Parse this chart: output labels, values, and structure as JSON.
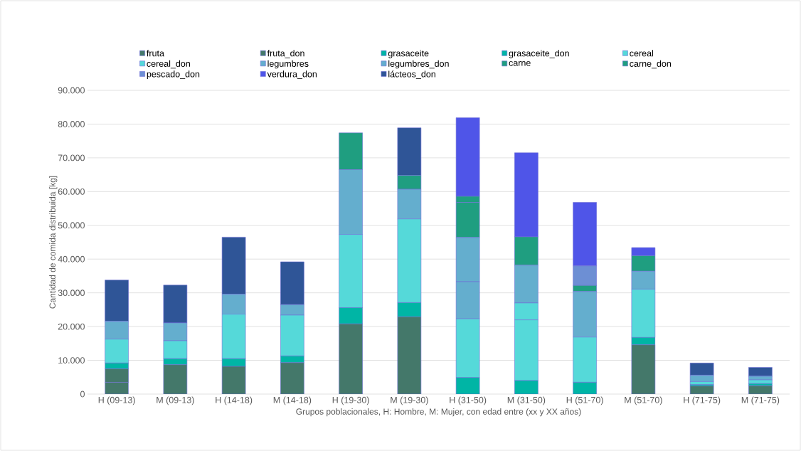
{
  "chart_data": {
    "type": "bar",
    "stacked": true,
    "xlabel": "Grupos poblacionales, H: Hombre, M: Mujer, con edad entre (xx y XX años)",
    "ylabel": "Cantidad de comida distribuida [kg]",
    "categories": [
      "H (09-13)",
      "M (09-13)",
      "H (14-18)",
      "M (14-18)",
      "H (19-30)",
      "M (19-30)",
      "H (31-50)",
      "M (31-50)",
      "H (51-70)",
      "M (51-70)",
      "H (71-75)",
      "M (71-75)"
    ],
    "series": [
      {
        "name": "fruta",
        "color": "#44786a",
        "values": [
          3500,
          null,
          null,
          null,
          null,
          null,
          null,
          null,
          null,
          null,
          null,
          null
        ]
      },
      {
        "name": "fruta_don",
        "color": "#44786a",
        "values": [
          4000,
          8700,
          8200,
          9300,
          20800,
          22900,
          null,
          null,
          null,
          14600,
          2400,
          2500
        ]
      },
      {
        "name": "grasaceite",
        "color": "#00b5a5",
        "values": [
          null,
          1800,
          2300,
          2000,
          4800,
          4200,
          4900,
          4000,
          null,
          null,
          400,
          600
        ]
      },
      {
        "name": "grasaceite_don",
        "color": "#00b5a5",
        "values": [
          1700,
          null,
          null,
          null,
          null,
          null,
          null,
          null,
          3500,
          2200,
          null,
          null
        ]
      },
      {
        "name": "cereal",
        "color": "#55d9d9",
        "values": [
          7100,
          5300,
          13200,
          12100,
          null,
          null,
          17400,
          18000,
          13400,
          14300,
          900,
          1100
        ]
      },
      {
        "name": "cereal_don",
        "color": "#55d9d9",
        "values": [
          null,
          null,
          null,
          null,
          21700,
          24800,
          null,
          5000,
          null,
          null,
          null,
          null
        ]
      },
      {
        "name": "legumbres",
        "color": "#64aece",
        "values": [
          5300,
          5300,
          5900,
          3100,
          19200,
          8800,
          11000,
          11200,
          13500,
          5300,
          1900,
          1100
        ]
      },
      {
        "name": "legumbres_don",
        "color": "#64aece",
        "values": [
          null,
          null,
          null,
          null,
          null,
          null,
          13100,
          null,
          null,
          null,
          null,
          null
        ]
      },
      {
        "name": "carne",
        "color": "#1f9e80",
        "values": [
          null,
          null,
          null,
          null,
          null,
          4100,
          10400,
          8400,
          null,
          4600,
          null,
          null
        ]
      },
      {
        "name": "carne_don",
        "color": "#1f9e80",
        "values": [
          null,
          null,
          null,
          null,
          10900,
          null,
          1800,
          null,
          1800,
          null,
          null,
          null
        ]
      },
      {
        "name": "pescado_don",
        "color": "#6d8fd4",
        "values": [
          null,
          null,
          null,
          null,
          null,
          null,
          null,
          null,
          5800,
          null,
          null,
          null
        ]
      },
      {
        "name": "verdura_don",
        "color": "#4f55e8",
        "values": [
          null,
          null,
          null,
          null,
          null,
          null,
          23300,
          24900,
          18800,
          2400,
          null,
          null
        ]
      },
      {
        "name": "lácteos_don",
        "color": "#2f5597",
        "values": [
          12200,
          11200,
          16900,
          12700,
          null,
          14100,
          null,
          null,
          null,
          null,
          3600,
          2600
        ]
      }
    ],
    "ylim": [
      0,
      90000
    ],
    "yticks": [
      {
        "value": 0,
        "label": "0"
      },
      {
        "value": 10000,
        "label": "10.000"
      },
      {
        "value": 20000,
        "label": "20.000"
      },
      {
        "value": 30000,
        "label": "30.000"
      },
      {
        "value": 40000,
        "label": "40.000"
      },
      {
        "value": 50000,
        "label": "50.000"
      },
      {
        "value": 60000,
        "label": "60.000"
      },
      {
        "value": 70000,
        "label": "70.000"
      },
      {
        "value": 80000,
        "label": "80.000"
      },
      {
        "value": 90000,
        "label": "90.000"
      }
    ],
    "grid": "y",
    "legend": "top"
  }
}
